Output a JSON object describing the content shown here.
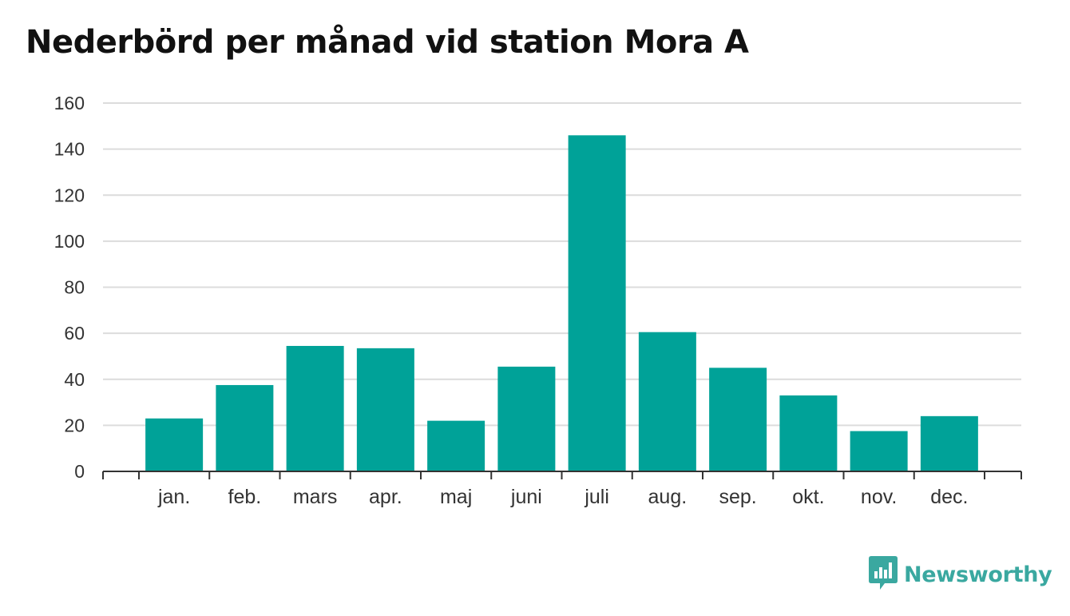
{
  "title": "Nederbörd per månad vid station Mora A",
  "brand": {
    "name": "Newsworthy",
    "icon": "newsworthy-logo-icon",
    "color": "#3aa8a0"
  },
  "colors": {
    "bar": "#00a298",
    "grid": "#dcdcdc",
    "axis": "#333333"
  },
  "chart_data": {
    "type": "bar",
    "categories": [
      "jan.",
      "feb.",
      "mars",
      "apr.",
      "maj",
      "juni",
      "juli",
      "aug.",
      "sep.",
      "okt.",
      "nov.",
      "dec."
    ],
    "values": [
      23,
      37.5,
      54.5,
      53.5,
      22,
      45.5,
      146,
      60.5,
      45,
      33,
      17.5,
      24
    ],
    "ylim": [
      0,
      160
    ],
    "yticks": [
      0,
      20,
      40,
      60,
      80,
      100,
      120,
      140,
      160
    ],
    "xlabel": "",
    "ylabel": "",
    "grid": true,
    "legend": "none"
  }
}
